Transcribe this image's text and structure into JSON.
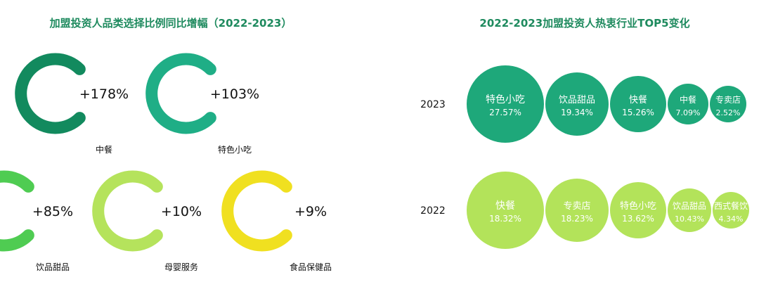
{
  "chart_data": [
    {
      "type": "donut",
      "title": "加盟投资人品类选择比例同比增幅（2022-2023）",
      "categories": [
        "中餐",
        "特色小吃",
        "饮品甜品",
        "母婴服务",
        "食品保健品"
      ],
      "values": [
        "+178%",
        "+103%",
        "+85%",
        "+10%",
        "+9%"
      ],
      "colors": [
        "#128a5e",
        "#1fae86",
        "#4fcc52",
        "#b5e35c",
        "#f0e020"
      ]
    },
    {
      "type": "bubble",
      "title": "2022-2023加盟投资人热衷行业TOP5变化",
      "rows": [
        {
          "year": "2023",
          "color": "#1ea87a",
          "items": [
            {
              "name": "特色小吃",
              "value": "27.57%"
            },
            {
              "name": "饮品甜品",
              "value": "19.34%"
            },
            {
              "name": "快餐",
              "value": "15.26%"
            },
            {
              "name": "中餐",
              "value": "7.09%"
            },
            {
              "name": "专卖店",
              "value": "2.52%"
            }
          ]
        },
        {
          "year": "2022",
          "color": "#b3e35a",
          "items": [
            {
              "name": "快餐",
              "value": "18.32%"
            },
            {
              "name": "专卖店",
              "value": "18.23%"
            },
            {
              "name": "特色小吃",
              "value": "13.62%"
            },
            {
              "name": "饮品甜品",
              "value": "10.43%"
            },
            {
              "name": "西式餐饮",
              "value": "4.34%"
            }
          ]
        }
      ]
    }
  ]
}
